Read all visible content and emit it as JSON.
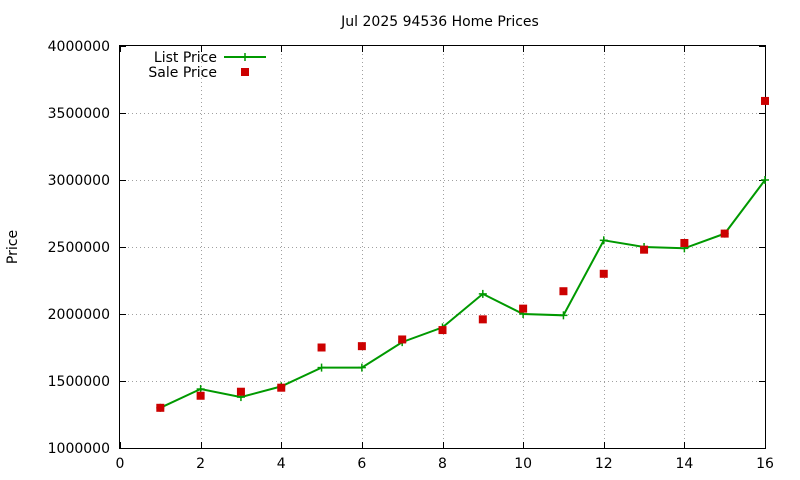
{
  "chart_data": {
    "type": "line",
    "title": "Jul 2025 94536 Home Prices",
    "xlabel": "",
    "ylabel": "Price",
    "xlim": [
      0,
      16
    ],
    "ylim": [
      1000000,
      4000000
    ],
    "x_ticks": [
      0,
      2,
      4,
      6,
      8,
      10,
      12,
      14,
      16
    ],
    "x_tick_labels": [
      "0",
      "2",
      "4",
      "6",
      "8",
      "10",
      "12",
      "14",
      "16"
    ],
    "y_ticks": [
      1000000,
      1500000,
      2000000,
      2500000,
      3000000,
      3500000,
      4000000
    ],
    "y_tick_labels": [
      "1000000",
      "1500000",
      "2000000",
      "2500000",
      "3000000",
      "3500000",
      "4000000"
    ],
    "grid": true,
    "legend_position": "top-left",
    "series": [
      {
        "name": "List Price",
        "style": "line-with-plus-markers",
        "color": "#009900",
        "x": [
          1,
          2,
          3,
          4,
          5,
          6,
          7,
          8,
          9,
          10,
          11,
          12,
          13,
          14,
          15,
          16
        ],
        "y": [
          1300000,
          1440000,
          1380000,
          1460000,
          1600000,
          1600000,
          1790000,
          1900000,
          2150000,
          2000000,
          1990000,
          2550000,
          2500000,
          2490000,
          2600000,
          3000000
        ]
      },
      {
        "name": "Sale Price",
        "style": "square-markers",
        "color": "#cc0000",
        "x": [
          1,
          2,
          3,
          4,
          5,
          6,
          7,
          8,
          9,
          10,
          11,
          12,
          13,
          14,
          15,
          16
        ],
        "y": [
          1300000,
          1390000,
          1420000,
          1450000,
          1750000,
          1760000,
          1810000,
          1880000,
          1960000,
          2040000,
          2170000,
          2300000,
          2480000,
          2530000,
          2600000,
          3590000
        ]
      }
    ]
  }
}
